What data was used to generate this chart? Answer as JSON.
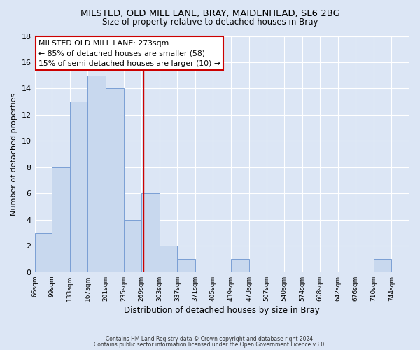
{
  "title_line1": "MILSTED, OLD MILL LANE, BRAY, MAIDENHEAD, SL6 2BG",
  "title_line2": "Size of property relative to detached houses in Bray",
  "xlabel": "Distribution of detached houses by size in Bray",
  "ylabel": "Number of detached properties",
  "bin_labels": [
    "66sqm",
    "99sqm",
    "133sqm",
    "167sqm",
    "201sqm",
    "235sqm",
    "269sqm",
    "303sqm",
    "337sqm",
    "371sqm",
    "405sqm",
    "439sqm",
    "473sqm",
    "507sqm",
    "540sqm",
    "574sqm",
    "608sqm",
    "642sqm",
    "676sqm",
    "710sqm",
    "744sqm"
  ],
  "bin_edges": [
    66,
    99,
    133,
    167,
    201,
    235,
    269,
    303,
    337,
    371,
    405,
    439,
    473,
    507,
    540,
    574,
    608,
    642,
    676,
    710,
    744,
    778
  ],
  "counts": [
    3,
    8,
    13,
    15,
    14,
    4,
    6,
    2,
    1,
    0,
    0,
    1,
    0,
    0,
    0,
    0,
    0,
    0,
    0,
    1,
    0
  ],
  "bar_color": "#c8d8ee",
  "bar_edge_color": "#7a9fd4",
  "bg_color": "#dce6f5",
  "grid_color": "#ffffff",
  "property_line_x": 273,
  "property_line_color": "#cc0000",
  "annotation_text": "MILSTED OLD MILL LANE: 273sqm\n← 85% of detached houses are smaller (58)\n15% of semi-detached houses are larger (10) →",
  "annotation_box_color": "#cc0000",
  "annotation_bg": "#ffffff",
  "footer_line1": "Contains HM Land Registry data © Crown copyright and database right 2024.",
  "footer_line2": "Contains public sector information licensed under the Open Government Licence v3.0.",
  "ylim": [
    0,
    18
  ],
  "yticks": [
    0,
    2,
    4,
    6,
    8,
    10,
    12,
    14,
    16,
    18
  ]
}
